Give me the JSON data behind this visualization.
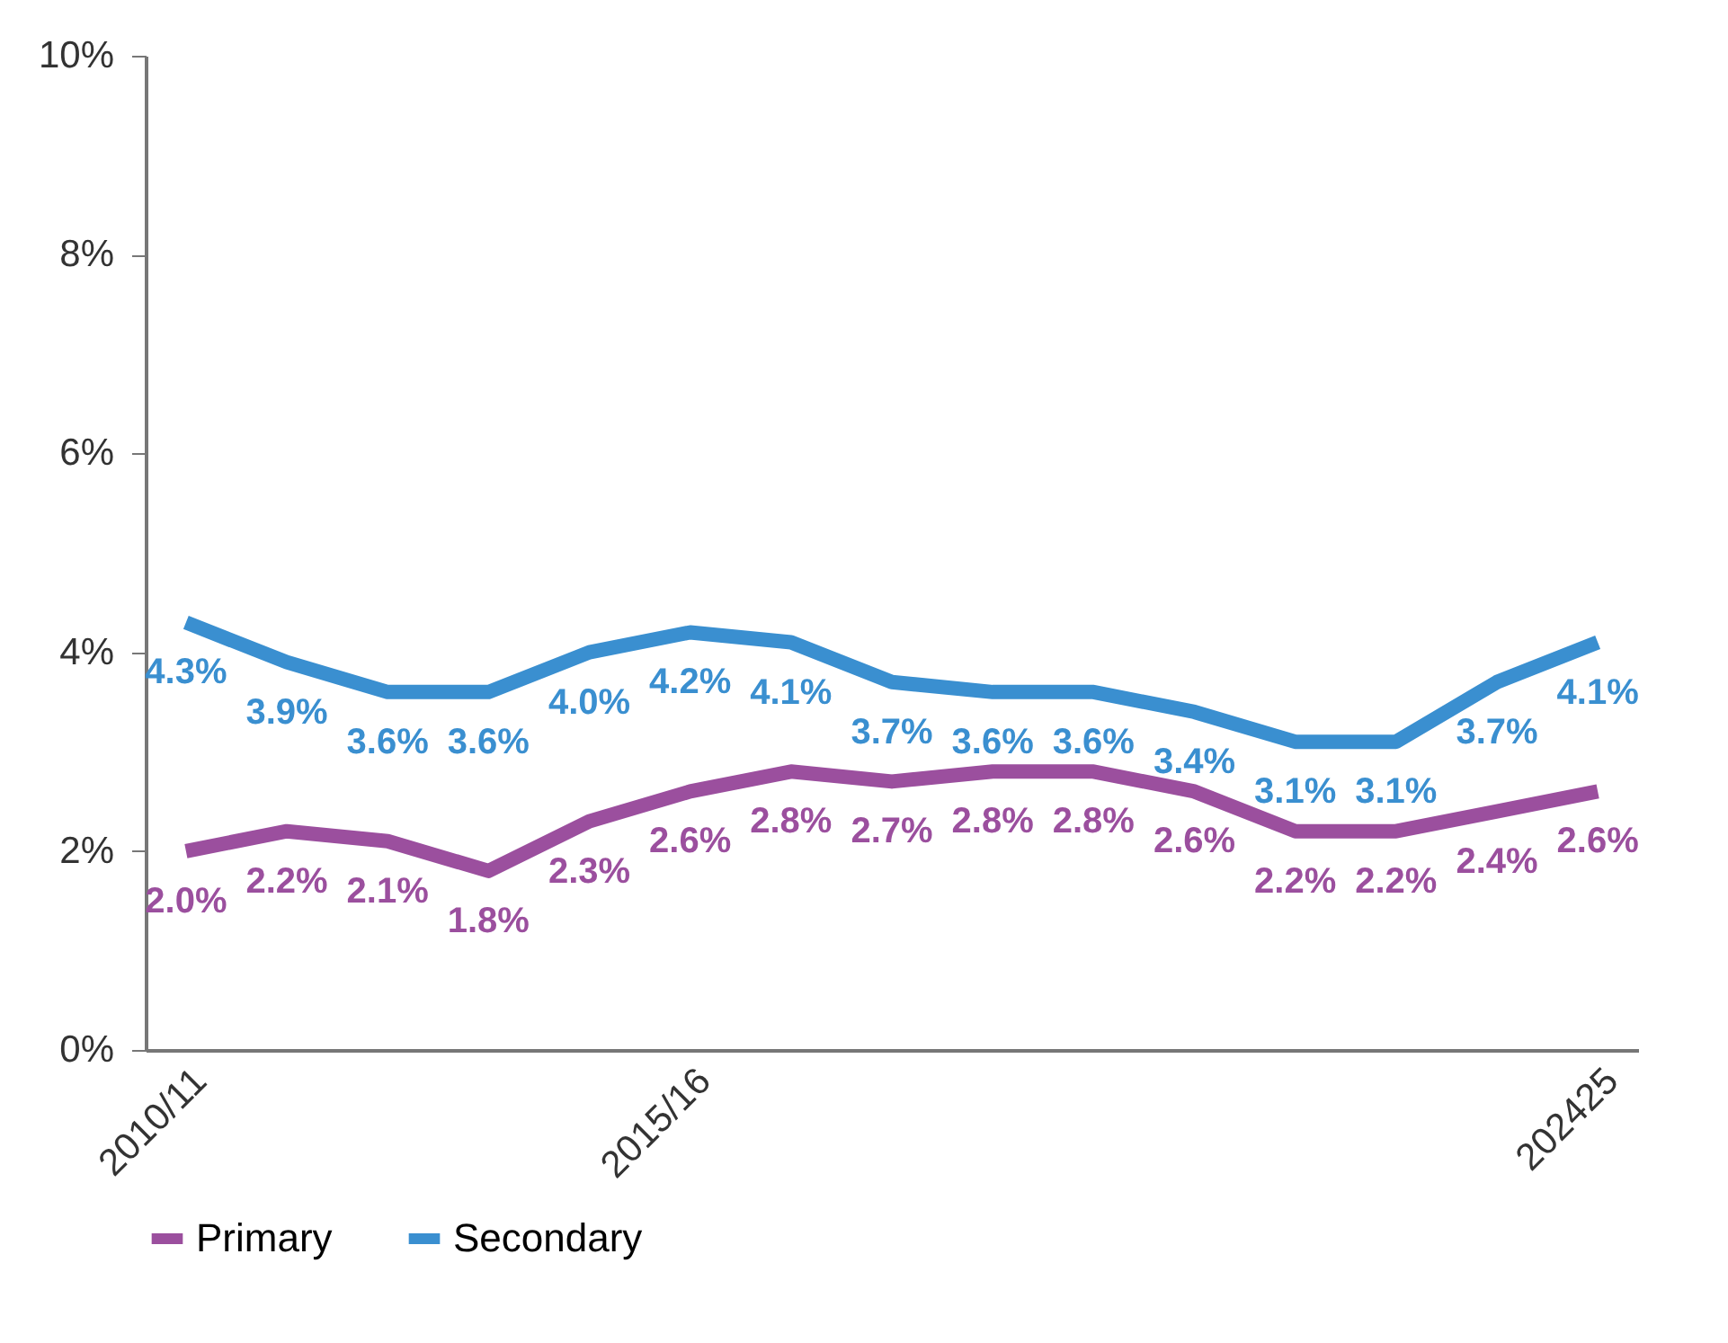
{
  "chart_data": {
    "type": "line",
    "categories": [
      "2010/11",
      null,
      null,
      null,
      null,
      "2015/16",
      null,
      null,
      null,
      null,
      null,
      null,
      null,
      null,
      "202425"
    ],
    "series": [
      {
        "name": "Primary",
        "color": "#9b4f9e",
        "values": [
          2.0,
          2.2,
          2.1,
          1.8,
          2.3,
          2.6,
          2.8,
          2.7,
          2.8,
          2.8,
          2.6,
          2.2,
          2.2,
          2.4,
          2.6
        ],
        "value_labels": [
          "2.0%",
          "2.2%",
          "2.1%",
          "1.8%",
          "2.3%",
          "2.6%",
          "2.8%",
          "2.7%",
          "2.8%",
          "2.8%",
          "2.6%",
          "2.2%",
          "2.2%",
          "2.4%",
          "2.6%"
        ]
      },
      {
        "name": "Secondary",
        "color": "#3a8fd0",
        "values": [
          4.3,
          3.9,
          3.6,
          3.6,
          4.0,
          4.2,
          4.1,
          3.7,
          3.6,
          3.6,
          3.4,
          3.1,
          3.1,
          3.7,
          4.1
        ],
        "value_labels": [
          "4.3%",
          "3.9%",
          "3.6%",
          "3.6%",
          "4.0%",
          "4.2%",
          "4.1%",
          "3.7%",
          "3.6%",
          "3.6%",
          "3.4%",
          "3.1%",
          "3.1%",
          "3.7%",
          "4.1%"
        ]
      }
    ],
    "ylim": [
      0,
      10
    ],
    "yticks": [
      {
        "value": 0,
        "label": "0%"
      },
      {
        "value": 2,
        "label": "2%"
      },
      {
        "value": 4,
        "label": "4%"
      },
      {
        "value": 6,
        "label": "6%"
      },
      {
        "value": 8,
        "label": "8%"
      },
      {
        "value": 10,
        "label": "10%"
      }
    ],
    "grid": false,
    "legend": "bottom",
    "marker": "none",
    "line_style": "solid"
  }
}
